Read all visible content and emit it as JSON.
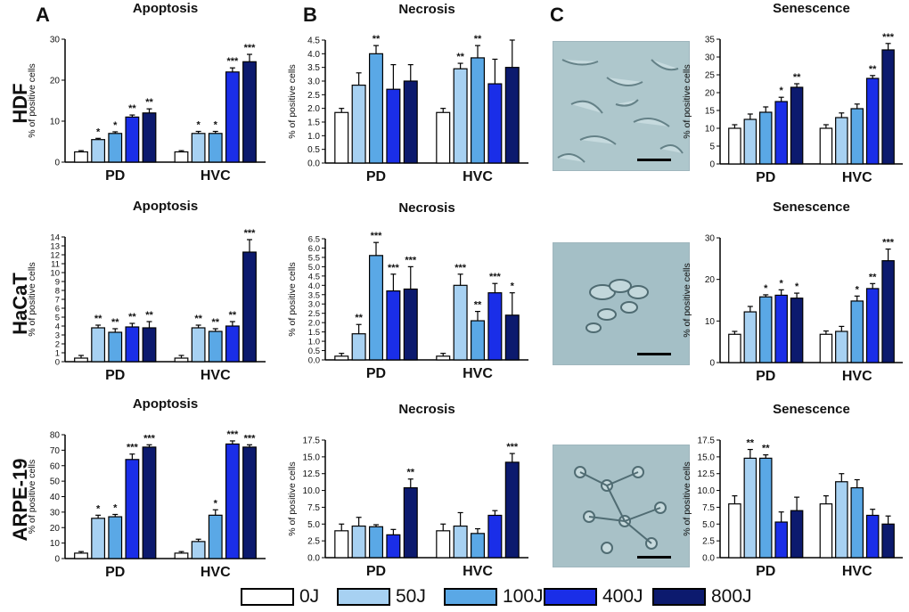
{
  "figure": {
    "panel_labels": [
      "A",
      "B",
      "C"
    ],
    "row_labels": [
      "HDF",
      "HaCaT",
      "ARPE-19"
    ],
    "legend": [
      {
        "label": "0J",
        "color": "#ffffff"
      },
      {
        "label": "50J",
        "color": "#a7d1f2"
      },
      {
        "label": "100J",
        "color": "#5aa8e6"
      },
      {
        "label": "400J",
        "color": "#1a2ee8"
      },
      {
        "label": "800J",
        "color": "#0c1a6e"
      }
    ]
  },
  "chart_data": [
    {
      "id": "hdf-apoptosis",
      "type": "bar",
      "title": "Apoptosis",
      "ylabel": "% of positive cells",
      "categories": [
        "PD",
        "HVC"
      ],
      "ylim": [
        0,
        30
      ],
      "yticks": [
        0,
        10,
        20,
        30
      ],
      "series": [
        {
          "name": "0J",
          "values": [
            2.5,
            2.5
          ],
          "errors": [
            0.3,
            0.3
          ],
          "sig": [
            "",
            ""
          ]
        },
        {
          "name": "50J",
          "values": [
            5.5,
            7
          ],
          "errors": [
            0.3,
            0.5
          ],
          "sig": [
            "*",
            "*"
          ]
        },
        {
          "name": "100J",
          "values": [
            7,
            7
          ],
          "errors": [
            0.4,
            0.5
          ],
          "sig": [
            "*",
            "*"
          ]
        },
        {
          "name": "400J",
          "values": [
            11,
            22
          ],
          "errors": [
            0.5,
            1
          ],
          "sig": [
            "**",
            "***"
          ]
        },
        {
          "name": "800J",
          "values": [
            12,
            24.5
          ],
          "errors": [
            1,
            1.8
          ],
          "sig": [
            "**",
            "***"
          ]
        }
      ]
    },
    {
      "id": "hdf-necrosis",
      "type": "bar",
      "title": "Necrosis",
      "ylabel": "% of positive cells",
      "categories": [
        "PD",
        "HVC"
      ],
      "ylim": [
        0,
        4.5
      ],
      "yticks": [
        0,
        0.5,
        1,
        1.5,
        2,
        2.5,
        3,
        3.5,
        4,
        4.5
      ],
      "tickdec": 1,
      "series": [
        {
          "name": "0J",
          "values": [
            1.85,
            1.85
          ],
          "errors": [
            0.15,
            0.15
          ],
          "sig": [
            "",
            ""
          ]
        },
        {
          "name": "50J",
          "values": [
            2.85,
            3.45
          ],
          "errors": [
            0.45,
            0.2
          ],
          "sig": [
            "",
            "**"
          ]
        },
        {
          "name": "100J",
          "values": [
            4.0,
            3.85
          ],
          "errors": [
            0.3,
            0.45
          ],
          "sig": [
            "**",
            "**"
          ]
        },
        {
          "name": "400J",
          "values": [
            2.7,
            2.9
          ],
          "errors": [
            0.9,
            0.9
          ],
          "sig": [
            "",
            ""
          ]
        },
        {
          "name": "800J",
          "values": [
            3.0,
            3.5
          ],
          "errors": [
            0.6,
            1.0
          ],
          "sig": [
            "",
            ""
          ]
        }
      ]
    },
    {
      "id": "hdf-senescence",
      "type": "bar",
      "title": "Senescence",
      "ylabel": "% of positive cells",
      "categories": [
        "PD",
        "HVC"
      ],
      "ylim": [
        0,
        35
      ],
      "yticks": [
        0,
        5,
        10,
        15,
        20,
        25,
        30,
        35
      ],
      "series": [
        {
          "name": "0J",
          "values": [
            10,
            10
          ],
          "errors": [
            1,
            1
          ],
          "sig": [
            "",
            ""
          ]
        },
        {
          "name": "50J",
          "values": [
            12.5,
            13
          ],
          "errors": [
            1.5,
            1.3
          ],
          "sig": [
            "",
            ""
          ]
        },
        {
          "name": "100J",
          "values": [
            14.5,
            15.5
          ],
          "errors": [
            1.5,
            1.3
          ],
          "sig": [
            "",
            ""
          ]
        },
        {
          "name": "400J",
          "values": [
            17.5,
            24
          ],
          "errors": [
            1.2,
            0.8
          ],
          "sig": [
            "*",
            "**"
          ]
        },
        {
          "name": "800J",
          "values": [
            21.5,
            32
          ],
          "errors": [
            1,
            1.8
          ],
          "sig": [
            "**",
            "***"
          ]
        }
      ]
    },
    {
      "id": "hacat-apoptosis",
      "type": "bar",
      "title": "Apoptosis",
      "ylabel": "% of positive cells",
      "categories": [
        "PD",
        "HVC"
      ],
      "ylim": [
        0,
        14
      ],
      "yticks": [
        0,
        1,
        2,
        3,
        4,
        5,
        6,
        7,
        8,
        9,
        10,
        11,
        12,
        13,
        14
      ],
      "series": [
        {
          "name": "0J",
          "values": [
            0.4,
            0.4
          ],
          "errors": [
            0.3,
            0.3
          ],
          "sig": [
            "",
            ""
          ]
        },
        {
          "name": "50J",
          "values": [
            3.8,
            3.8
          ],
          "errors": [
            0.3,
            0.3
          ],
          "sig": [
            "**",
            "**"
          ]
        },
        {
          "name": "100J",
          "values": [
            3.3,
            3.4
          ],
          "errors": [
            0.4,
            0.3
          ],
          "sig": [
            "**",
            "**"
          ]
        },
        {
          "name": "400J",
          "values": [
            3.9,
            4.0
          ],
          "errors": [
            0.4,
            0.5
          ],
          "sig": [
            "**",
            "**"
          ]
        },
        {
          "name": "800J",
          "values": [
            3.8,
            12.3
          ],
          "errors": [
            0.7,
            1.4
          ],
          "sig": [
            "**",
            "***"
          ]
        }
      ]
    },
    {
      "id": "hacat-necrosis",
      "type": "bar",
      "title": "Necrosis",
      "ylabel": "% of positive cells",
      "categories": [
        "PD",
        "HVC"
      ],
      "ylim": [
        0,
        6.5
      ],
      "yticks": [
        0,
        0.5,
        1,
        1.5,
        2,
        2.5,
        3,
        3.5,
        4,
        4.5,
        5,
        5.5,
        6,
        6.5
      ],
      "tickdec": 1,
      "series": [
        {
          "name": "0J",
          "values": [
            0.2,
            0.2
          ],
          "errors": [
            0.15,
            0.15
          ],
          "sig": [
            "",
            ""
          ]
        },
        {
          "name": "50J",
          "values": [
            1.4,
            4.0
          ],
          "errors": [
            0.5,
            0.6
          ],
          "sig": [
            "**",
            "***"
          ]
        },
        {
          "name": "100J",
          "values": [
            5.6,
            2.1
          ],
          "errors": [
            0.7,
            0.5
          ],
          "sig": [
            "***",
            "**"
          ]
        },
        {
          "name": "400J",
          "values": [
            3.7,
            3.6
          ],
          "errors": [
            0.9,
            0.5
          ],
          "sig": [
            "***",
            "***"
          ]
        },
        {
          "name": "800J",
          "values": [
            3.8,
            2.4
          ],
          "errors": [
            1.2,
            1.2
          ],
          "sig": [
            "***",
            "*"
          ]
        }
      ]
    },
    {
      "id": "hacat-senescence",
      "type": "bar",
      "title": "Senescence",
      "ylabel": "% of positive cells",
      "categories": [
        "PD",
        "HVC"
      ],
      "ylim": [
        0,
        30
      ],
      "yticks": [
        0,
        10,
        20,
        30
      ],
      "series": [
        {
          "name": "0J",
          "values": [
            6.8,
            6.8
          ],
          "errors": [
            0.7,
            0.8
          ],
          "sig": [
            "",
            ""
          ]
        },
        {
          "name": "50J",
          "values": [
            12.2,
            7.5
          ],
          "errors": [
            1.3,
            1.2
          ],
          "sig": [
            "",
            ""
          ]
        },
        {
          "name": "100J",
          "values": [
            15.8,
            14.8
          ],
          "errors": [
            0.5,
            1.2
          ],
          "sig": [
            "*",
            "*"
          ]
        },
        {
          "name": "400J",
          "values": [
            16.2,
            17.8
          ],
          "errors": [
            1.3,
            1.2
          ],
          "sig": [
            "*",
            "**"
          ]
        },
        {
          "name": "800J",
          "values": [
            15.5,
            24.5
          ],
          "errors": [
            1.2,
            2.8
          ],
          "sig": [
            "*",
            "***"
          ]
        }
      ]
    },
    {
      "id": "arpe-apoptosis",
      "type": "bar",
      "title": "Apoptosis",
      "ylabel": "% of positive cells",
      "categories": [
        "PD",
        "HVC"
      ],
      "ylim": [
        0,
        80
      ],
      "yticks": [
        0,
        10,
        20,
        30,
        40,
        50,
        60,
        70,
        80
      ],
      "series": [
        {
          "name": "0J",
          "values": [
            3.5,
            3.5
          ],
          "errors": [
            1,
            1
          ],
          "sig": [
            "",
            ""
          ]
        },
        {
          "name": "50J",
          "values": [
            26,
            11
          ],
          "errors": [
            2,
            1.5
          ],
          "sig": [
            "*",
            ""
          ]
        },
        {
          "name": "100J",
          "values": [
            27,
            28
          ],
          "errors": [
            1.5,
            3.5
          ],
          "sig": [
            "*",
            "*"
          ]
        },
        {
          "name": "400J",
          "values": [
            64,
            74
          ],
          "errors": [
            3.5,
            2
          ],
          "sig": [
            "***",
            "***"
          ]
        },
        {
          "name": "800J",
          "values": [
            72,
            72
          ],
          "errors": [
            1.5,
            1.5
          ],
          "sig": [
            "***",
            "***"
          ]
        }
      ]
    },
    {
      "id": "arpe-necrosis",
      "type": "bar",
      "title": "Necrosis",
      "ylabel": "% of positive cells",
      "categories": [
        "PD",
        "HVC"
      ],
      "ylim": [
        0,
        17.5
      ],
      "yticks": [
        0,
        2.5,
        5,
        7.5,
        10,
        12.5,
        15,
        17.5
      ],
      "tickdec": 1,
      "series": [
        {
          "name": "0J",
          "values": [
            4.0,
            4.0
          ],
          "errors": [
            1.0,
            1.0
          ],
          "sig": [
            "",
            ""
          ]
        },
        {
          "name": "50J",
          "values": [
            4.7,
            4.7
          ],
          "errors": [
            1.3,
            2.0
          ],
          "sig": [
            "",
            ""
          ]
        },
        {
          "name": "100J",
          "values": [
            4.6,
            3.6
          ],
          "errors": [
            0.3,
            0.7
          ],
          "sig": [
            "",
            ""
          ]
        },
        {
          "name": "400J",
          "values": [
            3.4,
            6.3
          ],
          "errors": [
            0.8,
            0.7
          ],
          "sig": [
            "",
            ""
          ]
        },
        {
          "name": "800J",
          "values": [
            10.4,
            14.2
          ],
          "errors": [
            1.3,
            1.3
          ],
          "sig": [
            "**",
            "***"
          ]
        }
      ]
    },
    {
      "id": "arpe-senescence",
      "type": "bar",
      "title": "Senescence",
      "ylabel": "% of positive cells",
      "categories": [
        "PD",
        "HVC"
      ],
      "ylim": [
        0,
        17.5
      ],
      "yticks": [
        0,
        2.5,
        5,
        7.5,
        10,
        12.5,
        15,
        17.5
      ],
      "tickdec": 1,
      "series": [
        {
          "name": "0J",
          "values": [
            8.0,
            8.0
          ],
          "errors": [
            1.2,
            1.2
          ],
          "sig": [
            "",
            ""
          ]
        },
        {
          "name": "50J",
          "values": [
            14.8,
            11.3
          ],
          "errors": [
            1.3,
            1.2
          ],
          "sig": [
            "**",
            ""
          ]
        },
        {
          "name": "100J",
          "values": [
            14.8,
            10.4
          ],
          "errors": [
            0.5,
            1.2
          ],
          "sig": [
            "**",
            ""
          ]
        },
        {
          "name": "400J",
          "values": [
            5.3,
            6.3
          ],
          "errors": [
            1.5,
            0.9
          ],
          "sig": [
            "",
            ""
          ]
        },
        {
          "name": "800J",
          "values": [
            7.0,
            5.0
          ],
          "errors": [
            2.0,
            1.2
          ],
          "sig": [
            "",
            ""
          ]
        }
      ]
    }
  ]
}
